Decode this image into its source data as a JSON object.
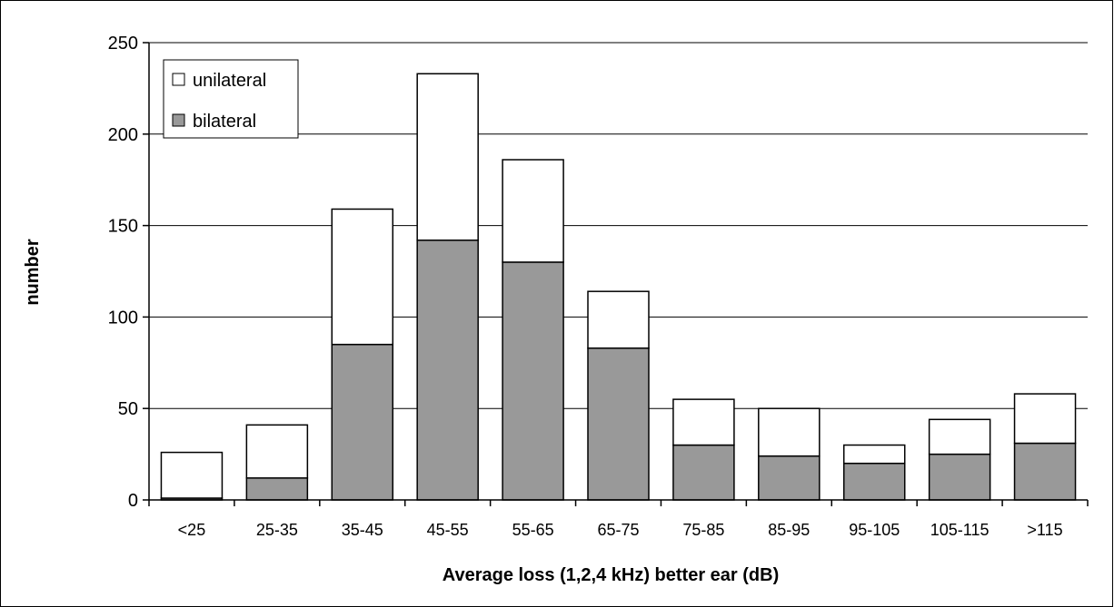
{
  "chart_data": {
    "type": "bar",
    "stacked": true,
    "categories": [
      "<25",
      "25-35",
      "35-45",
      "45-55",
      "55-65",
      "65-75",
      "75-85",
      "85-95",
      "95-105",
      "105-115",
      ">115"
    ],
    "series": [
      {
        "name": "bilateral",
        "color": "#999999",
        "values": [
          1,
          12,
          85,
          142,
          130,
          83,
          30,
          24,
          20,
          25,
          31
        ]
      },
      {
        "name": "unilateral",
        "color": "#ffffff",
        "values": [
          25,
          29,
          74,
          91,
          56,
          31,
          25,
          26,
          10,
          19,
          27
        ]
      }
    ],
    "ylim": [
      0,
      250
    ],
    "yticks": [
      0,
      50,
      100,
      150,
      200,
      250
    ],
    "xlabel": "Average loss (1,2,4 kHz) better ear (dB)",
    "ylabel": "number",
    "legend": {
      "position": "top-left",
      "entries": [
        "unilateral",
        "bilateral"
      ]
    },
    "grid": true
  }
}
